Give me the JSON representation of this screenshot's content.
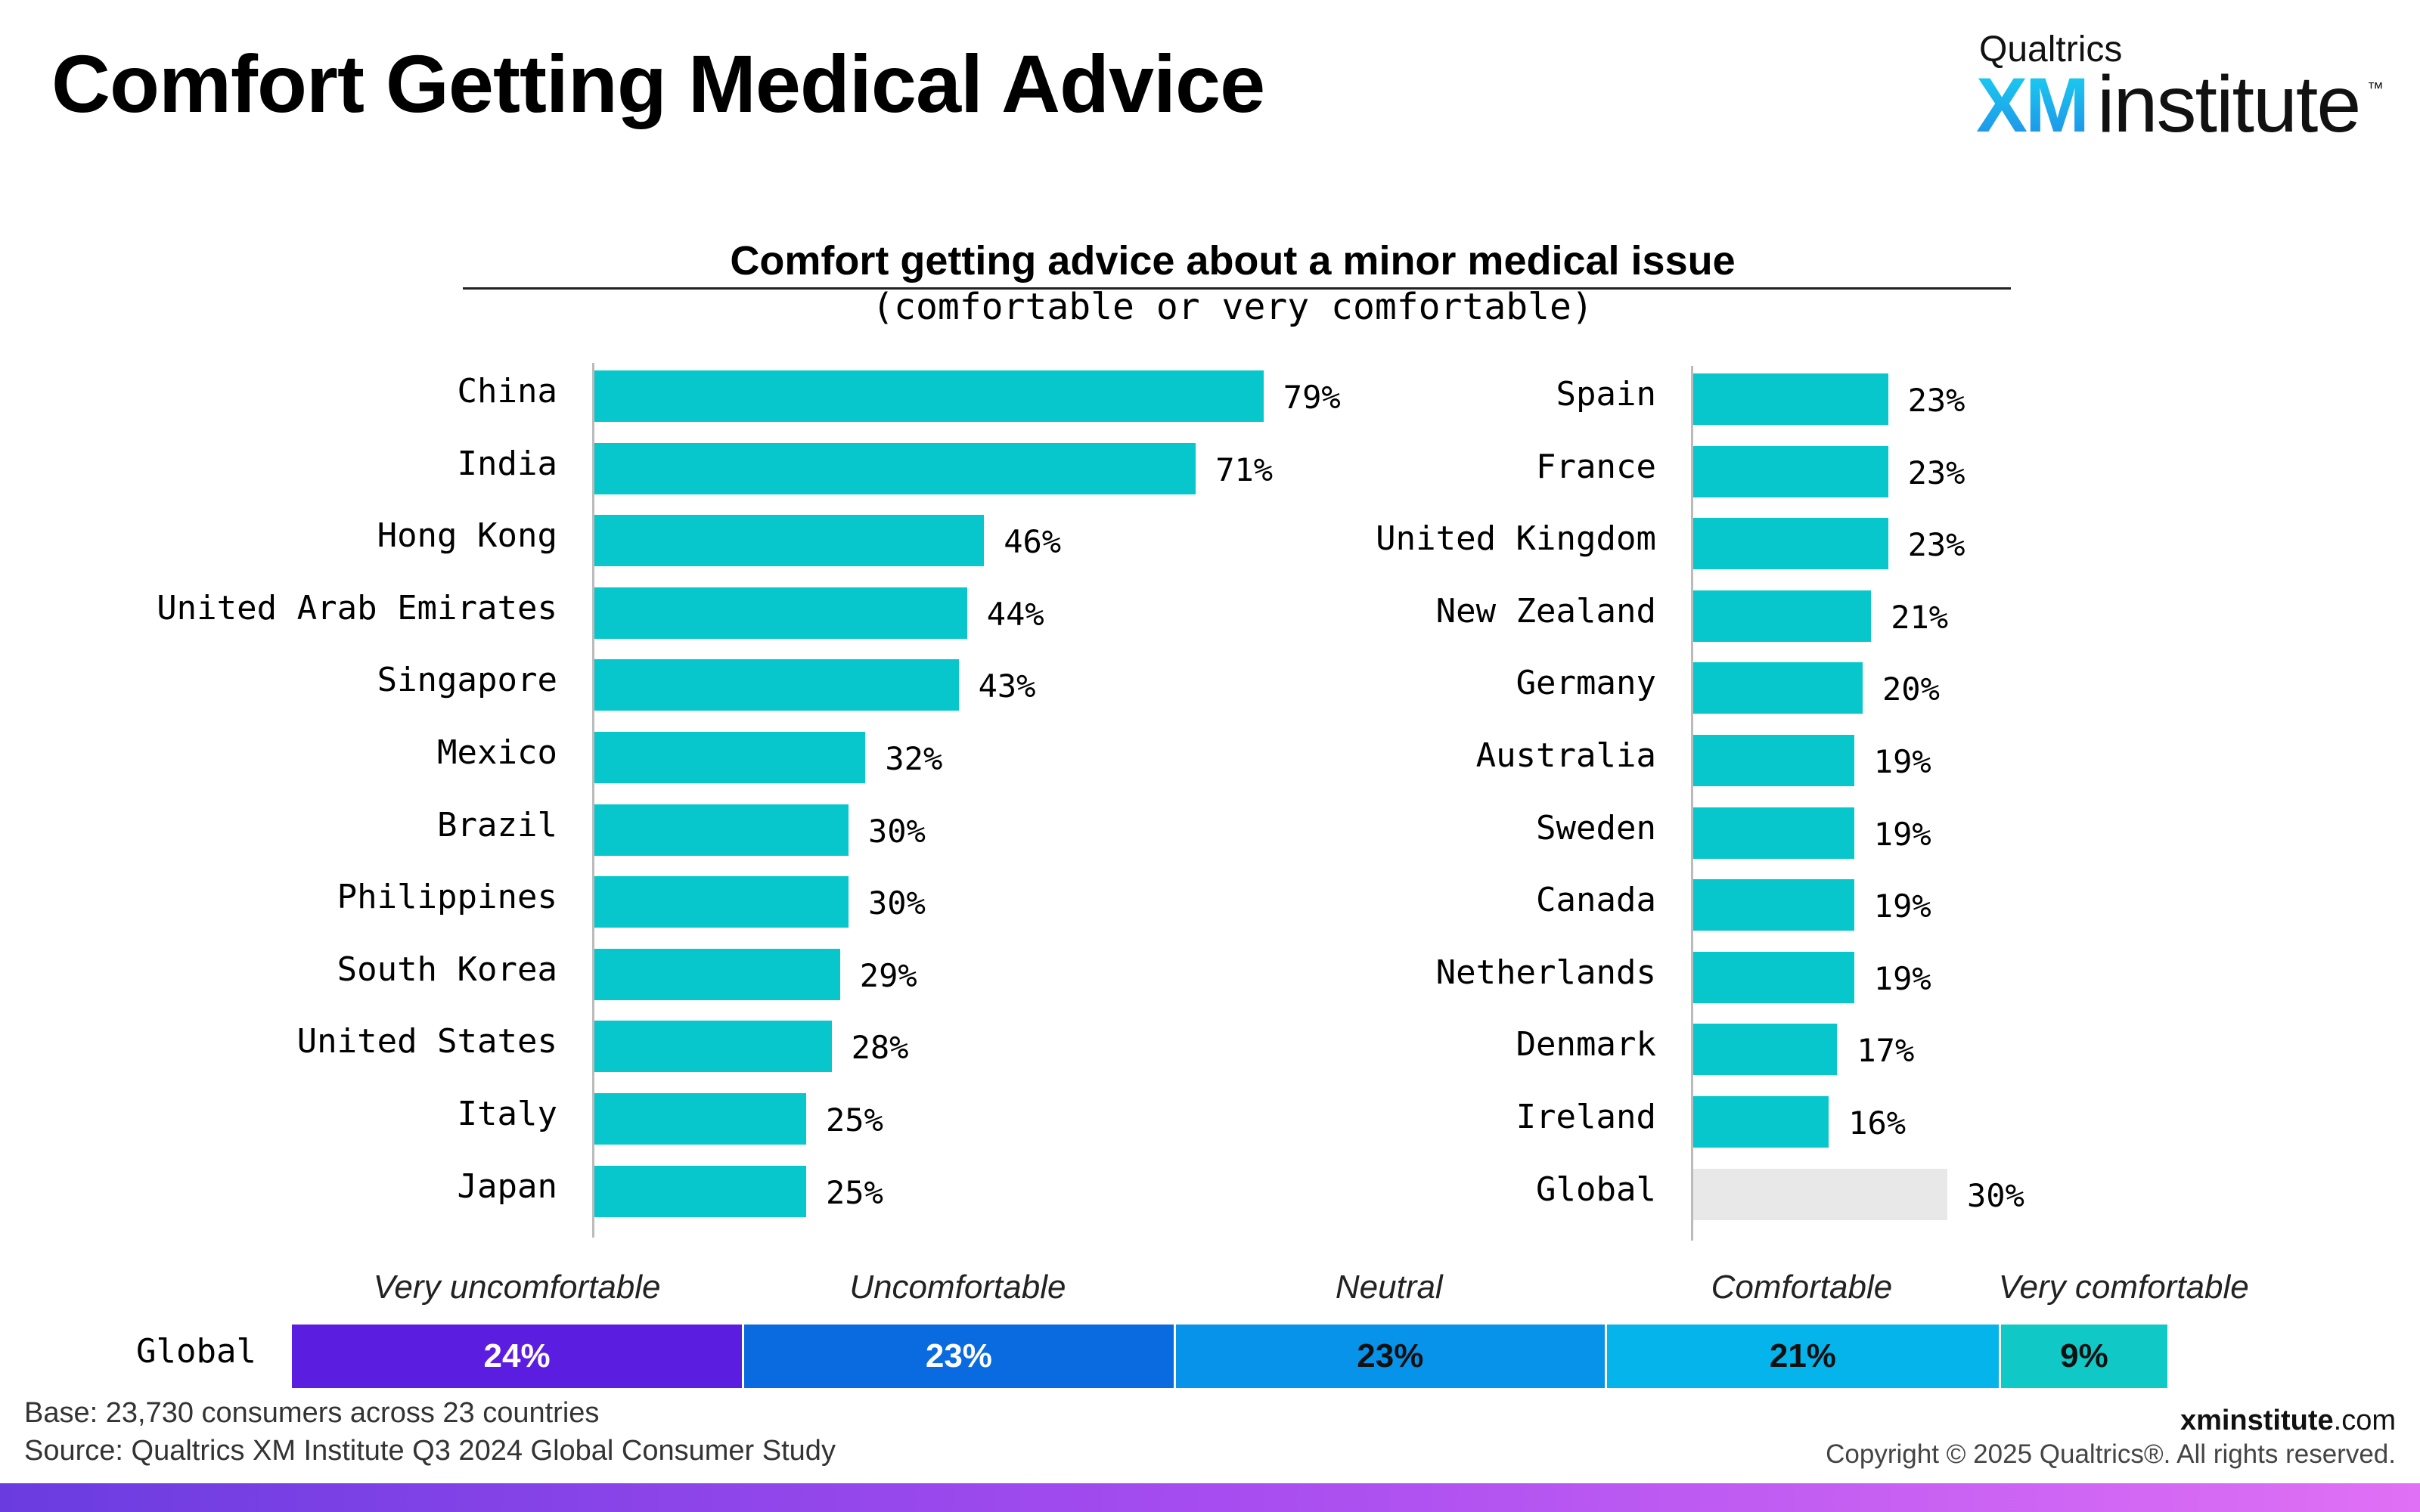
{
  "page": {
    "title": "Comfort Getting Medical Advice",
    "logo": {
      "top": "Qualtrics",
      "mark": "XM",
      "word": "institute",
      "tm": "™"
    },
    "footer": {
      "base": "Base: 23,730 consumers across 23 countries",
      "source": "Source: Qualtrics XM Institute Q3 2024 Global Consumer Study",
      "site_bold": "xminstitute",
      "site_rest": ".com",
      "copyright": "Copyright © 2025 Qualtrics®. All rights reserved."
    }
  },
  "colors": {
    "bar": "#08c7cc",
    "global_bar": "#e8e8e8"
  },
  "chart_data": [
    {
      "type": "bar",
      "orientation": "horizontal",
      "title": "Comfort getting advice about a minor medical issue",
      "subtitle": "(comfortable or very comfortable)",
      "value_suffix": "%",
      "xlim": [
        0,
        100
      ],
      "panels": [
        {
          "categories": [
            "China",
            "India",
            "Hong Kong",
            "United Arab Emirates",
            "Singapore",
            "Mexico",
            "Brazil",
            "Philippines",
            "South Korea",
            "United States",
            "Italy",
            "Japan"
          ],
          "values": [
            79,
            71,
            46,
            44,
            43,
            32,
            30,
            30,
            29,
            28,
            25,
            25
          ]
        },
        {
          "categories": [
            "Spain",
            "France",
            "United Kingdom",
            "New Zealand",
            "Germany",
            "Australia",
            "Sweden",
            "Canada",
            "Netherlands",
            "Denmark",
            "Ireland",
            "Global"
          ],
          "values": [
            23,
            23,
            23,
            21,
            20,
            19,
            19,
            19,
            19,
            17,
            16,
            30
          ]
        }
      ]
    },
    {
      "type": "bar",
      "orientation": "stacked-100",
      "categories": [
        "Global"
      ],
      "series": [
        {
          "name": "Very uncomfortable",
          "values": [
            24
          ],
          "color": "#5b1ee0",
          "text_color": "#ffffff"
        },
        {
          "name": "Uncomfortable",
          "values": [
            23
          ],
          "color": "#0a6ae0",
          "text_color": "#ffffff"
        },
        {
          "name": "Neutral",
          "values": [
            23
          ],
          "color": "#0893ea",
          "text_color": "#111111"
        },
        {
          "name": "Comfortable",
          "values": [
            21
          ],
          "color": "#04b4ea",
          "text_color": "#111111"
        },
        {
          "name": "Very comfortable",
          "values": [
            9
          ],
          "color": "#10c9c6",
          "text_color": "#111111"
        }
      ]
    }
  ]
}
